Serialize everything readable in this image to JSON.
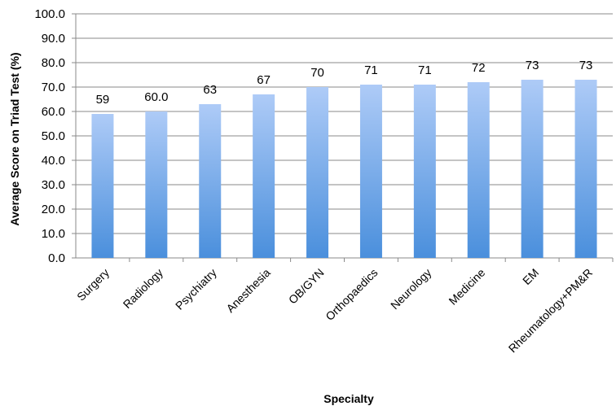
{
  "chart_data": {
    "type": "bar",
    "title": "",
    "xlabel": "Specialty",
    "ylabel": "Average Score on Triad Test (%)",
    "ylim": [
      0,
      100
    ],
    "yticks": [
      "0.0",
      "10.0",
      "20.0",
      "30.0",
      "40.0",
      "50.0",
      "60.0",
      "70.0",
      "80.0",
      "90.0",
      "100.0"
    ],
    "grid": true,
    "legend": "none",
    "categories": [
      "Surgery",
      "Radiology",
      "Psychiatry",
      "Anesthesia",
      "OB/GYN",
      "Orthopaedics",
      "Neurology",
      "Medicine",
      "EM",
      "Rheumatology+PM&R"
    ],
    "values": [
      59,
      60.0,
      63,
      67,
      70,
      71,
      71,
      72,
      73,
      73
    ],
    "value_labels": [
      "59",
      "60.0",
      "63",
      "67",
      "70",
      "71",
      "71",
      "72",
      "73",
      "73"
    ],
    "colors": {
      "bar_top": "#aecbf7",
      "bar_bottom": "#4a8fdc",
      "grid": "#8a8a8a",
      "axis": "#8a8a8a"
    }
  }
}
